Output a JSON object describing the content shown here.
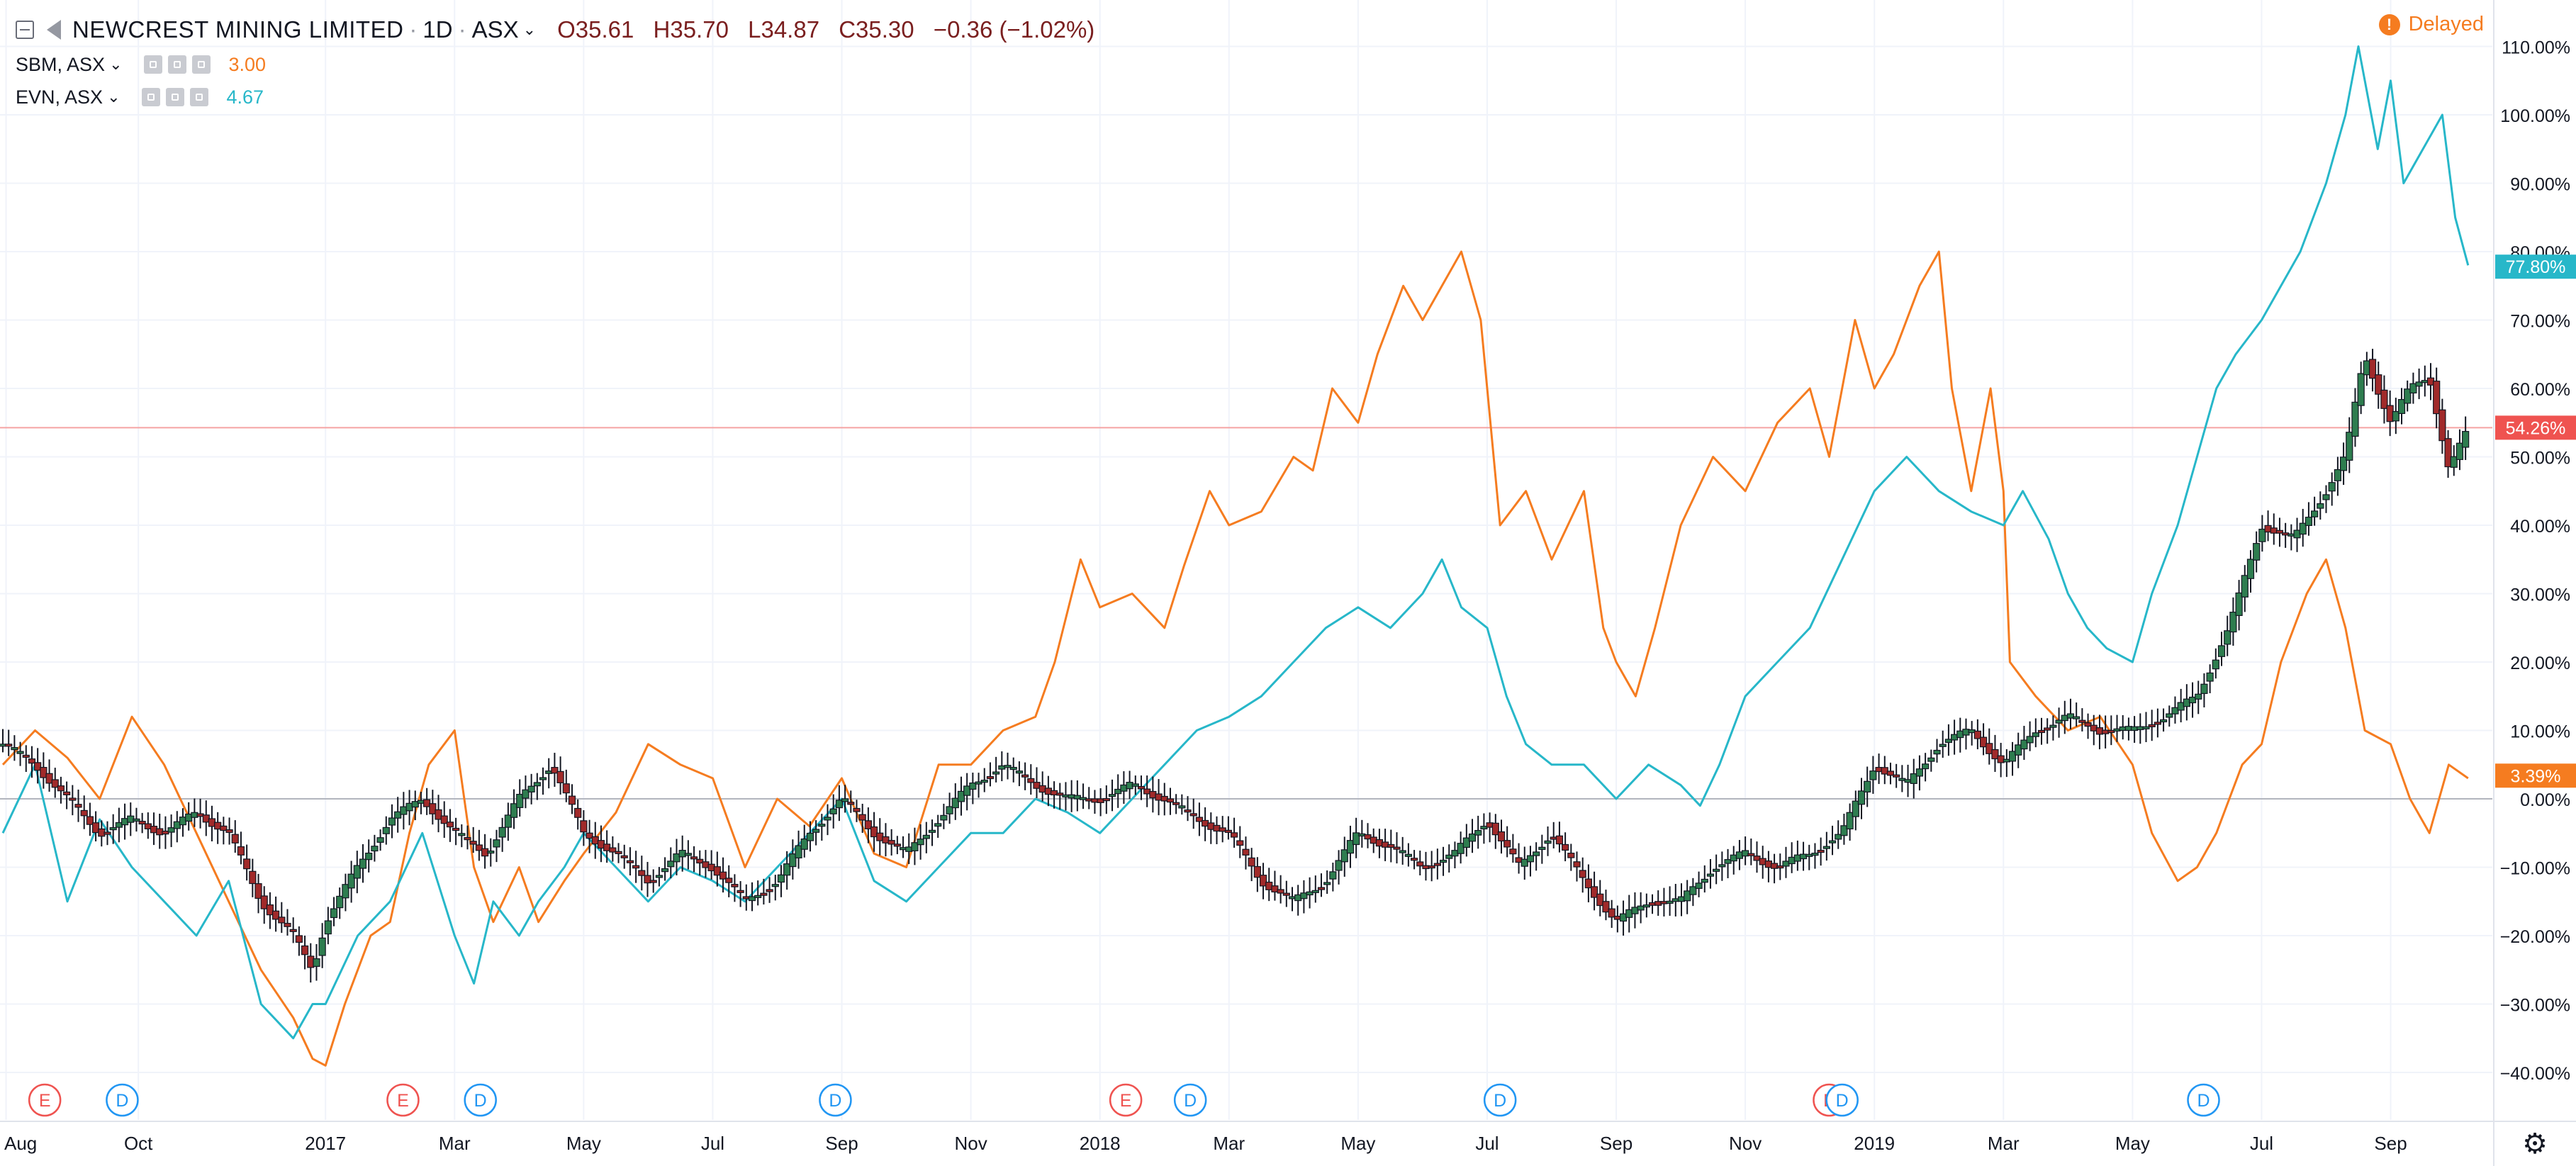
{
  "header": {
    "title": "NEWCREST MINING LIMITED",
    "interval": "1D",
    "exchange": "ASX",
    "ohlc": {
      "open": "O35.61",
      "high": "H35.70",
      "low": "L34.87",
      "close": "C35.30",
      "change": "−0.36 (−1.02%)"
    }
  },
  "compare": [
    {
      "symbol": "SBM, ASX",
      "value": "3.00",
      "color": "#f57c20"
    },
    {
      "symbol": "EVN, ASX",
      "value": "4.67",
      "color": "#27b7c9"
    }
  ],
  "status": {
    "delayed_label": "Delayed",
    "icon": "exclamation-icon"
  },
  "icons": {
    "settings": "gear-icon",
    "collapse": "minus-square-icon",
    "flag": "flag-icon"
  },
  "chart_data": {
    "type": "line",
    "main_series_type": "candlestick",
    "y_unit": "percent change",
    "ylim": [
      -45,
      113
    ],
    "y_ticks": [
      -40,
      -30,
      -20,
      -10,
      0,
      10,
      20,
      30,
      40,
      50,
      60,
      70,
      80,
      90,
      100,
      110
    ],
    "y_tick_labels": [
      "−40.00%",
      "−30.00%",
      "−20.00%",
      "−10.00%",
      "0.00%",
      "10.00%",
      "20.00%",
      "30.00%",
      "40.00%",
      "50.00%",
      "60.00%",
      "70.00%",
      "80.00%",
      "90.00%",
      "100.00%",
      "110.00%"
    ],
    "x_range": [
      "2016-08",
      "2019-09"
    ],
    "x_ticks": [
      {
        "label": "Aug",
        "t": 0.05
      },
      {
        "label": "Oct",
        "t": 2.1
      },
      {
        "label": "2017",
        "t": 5.0
      },
      {
        "label": "Mar",
        "t": 7.0
      },
      {
        "label": "May",
        "t": 9.0
      },
      {
        "label": "Jul",
        "t": 11.0
      },
      {
        "label": "Sep",
        "t": 13.0
      },
      {
        "label": "Nov",
        "t": 15.0
      },
      {
        "label": "2018",
        "t": 17.0
      },
      {
        "label": "Mar",
        "t": 19.0
      },
      {
        "label": "May",
        "t": 21.0
      },
      {
        "label": "Jul",
        "t": 23.0
      },
      {
        "label": "Sep",
        "t": 25.0
      },
      {
        "label": "Nov",
        "t": 27.0
      },
      {
        "label": "2019",
        "t": 29.0
      },
      {
        "label": "Mar",
        "t": 31.0
      },
      {
        "label": "May",
        "t": 33.0
      },
      {
        "label": "Jul",
        "t": 35.0
      },
      {
        "label": "Sep",
        "t": 37.0
      }
    ],
    "x_max": 38.4,
    "series": [
      {
        "name": "SBM, ASX",
        "color": "#f57c20",
        "points": [
          [
            0,
            5
          ],
          [
            0.5,
            10
          ],
          [
            1,
            6
          ],
          [
            1.5,
            0
          ],
          [
            2,
            12
          ],
          [
            2.5,
            5
          ],
          [
            3,
            -5
          ],
          [
            3.5,
            -15
          ],
          [
            4,
            -25
          ],
          [
            4.5,
            -32
          ],
          [
            4.8,
            -38
          ],
          [
            5,
            -39
          ],
          [
            5.3,
            -30
          ],
          [
            5.7,
            -20
          ],
          [
            6,
            -18
          ],
          [
            6.3,
            -5
          ],
          [
            6.6,
            5
          ],
          [
            7,
            10
          ],
          [
            7.3,
            -10
          ],
          [
            7.6,
            -18
          ],
          [
            8,
            -10
          ],
          [
            8.3,
            -18
          ],
          [
            8.7,
            -12
          ],
          [
            9,
            -8
          ],
          [
            9.5,
            -2
          ],
          [
            10,
            8
          ],
          [
            10.5,
            5
          ],
          [
            11,
            3
          ],
          [
            11.5,
            -10
          ],
          [
            12,
            0
          ],
          [
            12.5,
            -4
          ],
          [
            13,
            3
          ],
          [
            13.5,
            -8
          ],
          [
            14,
            -10
          ],
          [
            14.5,
            5
          ],
          [
            15,
            5
          ],
          [
            15.5,
            10
          ],
          [
            16,
            12
          ],
          [
            16.3,
            20
          ],
          [
            16.7,
            35
          ],
          [
            17,
            28
          ],
          [
            17.5,
            30
          ],
          [
            18,
            25
          ],
          [
            18.3,
            34
          ],
          [
            18.7,
            45
          ],
          [
            19,
            40
          ],
          [
            19.5,
            42
          ],
          [
            20,
            50
          ],
          [
            20.3,
            48
          ],
          [
            20.6,
            60
          ],
          [
            21,
            55
          ],
          [
            21.3,
            65
          ],
          [
            21.7,
            75
          ],
          [
            22,
            70
          ],
          [
            22.3,
            75
          ],
          [
            22.6,
            80
          ],
          [
            22.9,
            70
          ],
          [
            23.2,
            40
          ],
          [
            23.6,
            45
          ],
          [
            24,
            35
          ],
          [
            24.5,
            45
          ],
          [
            24.8,
            25
          ],
          [
            25,
            20
          ],
          [
            25.3,
            15
          ],
          [
            25.6,
            25
          ],
          [
            26,
            40
          ],
          [
            26.5,
            50
          ],
          [
            27,
            45
          ],
          [
            27.5,
            55
          ],
          [
            28,
            60
          ],
          [
            28.3,
            50
          ],
          [
            28.7,
            70
          ],
          [
            29,
            60
          ],
          [
            29.3,
            65
          ],
          [
            29.7,
            75
          ],
          [
            30,
            80
          ],
          [
            30.2,
            60
          ],
          [
            30.5,
            45
          ],
          [
            30.8,
            60
          ],
          [
            31,
            45
          ],
          [
            31.1,
            20
          ],
          [
            31.5,
            15
          ],
          [
            32,
            10
          ],
          [
            32.5,
            12
          ],
          [
            33,
            5
          ],
          [
            33.3,
            -5
          ],
          [
            33.7,
            -12
          ],
          [
            34,
            -10
          ],
          [
            34.3,
            -5
          ],
          [
            34.7,
            5
          ],
          [
            35,
            8
          ],
          [
            35.3,
            20
          ],
          [
            35.7,
            30
          ],
          [
            36,
            35
          ],
          [
            36.3,
            25
          ],
          [
            36.6,
            10
          ],
          [
            37,
            8
          ],
          [
            37.3,
            0
          ],
          [
            37.6,
            -5
          ],
          [
            37.9,
            5
          ],
          [
            38.2,
            3
          ]
        ]
      },
      {
        "name": "EVN, ASX",
        "color": "#27b7c9",
        "points": [
          [
            0,
            -5
          ],
          [
            0.5,
            5
          ],
          [
            1,
            -15
          ],
          [
            1.5,
            -3
          ],
          [
            2,
            -10
          ],
          [
            2.5,
            -15
          ],
          [
            3,
            -20
          ],
          [
            3.5,
            -12
          ],
          [
            4,
            -30
          ],
          [
            4.5,
            -35
          ],
          [
            4.8,
            -30
          ],
          [
            5,
            -30
          ],
          [
            5.5,
            -20
          ],
          [
            6,
            -15
          ],
          [
            6.5,
            -5
          ],
          [
            7,
            -20
          ],
          [
            7.3,
            -27
          ],
          [
            7.6,
            -15
          ],
          [
            8,
            -20
          ],
          [
            8.3,
            -15
          ],
          [
            8.7,
            -10
          ],
          [
            9,
            -5
          ],
          [
            9.5,
            -10
          ],
          [
            10,
            -15
          ],
          [
            10.5,
            -10
          ],
          [
            11,
            -12
          ],
          [
            11.5,
            -15
          ],
          [
            12,
            -10
          ],
          [
            12.5,
            -5
          ],
          [
            13,
            0
          ],
          [
            13.5,
            -12
          ],
          [
            14,
            -15
          ],
          [
            14.5,
            -10
          ],
          [
            15,
            -5
          ],
          [
            15.5,
            -5
          ],
          [
            16,
            0
          ],
          [
            16.5,
            -2
          ],
          [
            17,
            -5
          ],
          [
            17.5,
            0
          ],
          [
            18,
            5
          ],
          [
            18.5,
            10
          ],
          [
            19,
            12
          ],
          [
            19.5,
            15
          ],
          [
            20,
            20
          ],
          [
            20.5,
            25
          ],
          [
            21,
            28
          ],
          [
            21.5,
            25
          ],
          [
            22,
            30
          ],
          [
            22.3,
            35
          ],
          [
            22.6,
            28
          ],
          [
            23,
            25
          ],
          [
            23.3,
            15
          ],
          [
            23.6,
            8
          ],
          [
            24,
            5
          ],
          [
            24.5,
            5
          ],
          [
            25,
            0
          ],
          [
            25.5,
            5
          ],
          [
            26,
            2
          ],
          [
            26.3,
            -1
          ],
          [
            26.6,
            5
          ],
          [
            27,
            15
          ],
          [
            27.5,
            20
          ],
          [
            28,
            25
          ],
          [
            28.5,
            35
          ],
          [
            29,
            45
          ],
          [
            29.5,
            50
          ],
          [
            30,
            45
          ],
          [
            30.5,
            42
          ],
          [
            31,
            40
          ],
          [
            31.3,
            45
          ],
          [
            31.7,
            38
          ],
          [
            32,
            30
          ],
          [
            32.3,
            25
          ],
          [
            32.6,
            22
          ],
          [
            33,
            20
          ],
          [
            33.3,
            30
          ],
          [
            33.7,
            40
          ],
          [
            34,
            50
          ],
          [
            34.3,
            60
          ],
          [
            34.6,
            65
          ],
          [
            35,
            70
          ],
          [
            35.3,
            75
          ],
          [
            35.6,
            80
          ],
          [
            36,
            90
          ],
          [
            36.3,
            100
          ],
          [
            36.5,
            110
          ],
          [
            36.8,
            95
          ],
          [
            37,
            105
          ],
          [
            37.2,
            90
          ],
          [
            37.5,
            95
          ],
          [
            37.8,
            100
          ],
          [
            38,
            85
          ],
          [
            38.2,
            78
          ]
        ]
      },
      {
        "name": "NEWCREST MINING LIMITED",
        "color": "#2e6b3f",
        "points": [
          [
            0,
            8
          ],
          [
            0.5,
            5
          ],
          [
            1,
            0
          ],
          [
            1.5,
            -5
          ],
          [
            2,
            -3
          ],
          [
            2.5,
            -5
          ],
          [
            3,
            -2
          ],
          [
            3.5,
            -5
          ],
          [
            4,
            -15
          ],
          [
            4.5,
            -20
          ],
          [
            4.8,
            -25
          ],
          [
            5,
            -18
          ],
          [
            5.5,
            -10
          ],
          [
            6,
            -3
          ],
          [
            6.5,
            0
          ],
          [
            7,
            -5
          ],
          [
            7.5,
            -8
          ],
          [
            8,
            0
          ],
          [
            8.5,
            5
          ],
          [
            9,
            -5
          ],
          [
            9.5,
            -8
          ],
          [
            10,
            -12
          ],
          [
            10.5,
            -8
          ],
          [
            11,
            -10
          ],
          [
            11.5,
            -15
          ],
          [
            12,
            -12
          ],
          [
            12.5,
            -5
          ],
          [
            13,
            0
          ],
          [
            13.5,
            -5
          ],
          [
            14,
            -8
          ],
          [
            14.5,
            -3
          ],
          [
            15,
            2
          ],
          [
            15.5,
            5
          ],
          [
            16,
            2
          ],
          [
            16.5,
            0
          ],
          [
            17,
            0
          ],
          [
            17.5,
            2
          ],
          [
            18,
            0
          ],
          [
            18.5,
            -3
          ],
          [
            19,
            -5
          ],
          [
            19.5,
            -12
          ],
          [
            20,
            -15
          ],
          [
            20.5,
            -12
          ],
          [
            21,
            -5
          ],
          [
            21.5,
            -7
          ],
          [
            22,
            -10
          ],
          [
            22.5,
            -8
          ],
          [
            23,
            -3
          ],
          [
            23.5,
            -10
          ],
          [
            24,
            -5
          ],
          [
            24.5,
            -12
          ],
          [
            25,
            -18
          ],
          [
            25.5,
            -15
          ],
          [
            26,
            -15
          ],
          [
            26.5,
            -10
          ],
          [
            27,
            -8
          ],
          [
            27.5,
            -10
          ],
          [
            28,
            -8
          ],
          [
            28.5,
            -5
          ],
          [
            29,
            5
          ],
          [
            29.5,
            2
          ],
          [
            30,
            8
          ],
          [
            30.5,
            10
          ],
          [
            31,
            5
          ],
          [
            31.5,
            10
          ],
          [
            32,
            12
          ],
          [
            32.5,
            10
          ],
          [
            33,
            10
          ],
          [
            33.5,
            12
          ],
          [
            34,
            15
          ],
          [
            34.5,
            25
          ],
          [
            35,
            40
          ],
          [
            35.5,
            38
          ],
          [
            36,
            45
          ],
          [
            36.3,
            50
          ],
          [
            36.6,
            65
          ],
          [
            37,
            55
          ],
          [
            37.3,
            60
          ],
          [
            37.6,
            62
          ],
          [
            37.9,
            48
          ],
          [
            38.2,
            54
          ]
        ]
      }
    ],
    "price_labels": [
      {
        "value": 77.8,
        "label": "77.80%",
        "color": "#27b7c9"
      },
      {
        "value": 54.26,
        "label": "54.26%",
        "color": "#ef5350"
      },
      {
        "value": 3.39,
        "label": "3.39%",
        "color": "#f57c20"
      }
    ],
    "event_markers": [
      {
        "letter": "E",
        "t": 0.65,
        "color": "#ef5350"
      },
      {
        "letter": "D",
        "t": 1.85,
        "color": "#2196f3"
      },
      {
        "letter": "E",
        "t": 6.2,
        "color": "#ef5350"
      },
      {
        "letter": "D",
        "t": 7.4,
        "color": "#2196f3"
      },
      {
        "letter": "D",
        "t": 12.9,
        "color": "#2196f3"
      },
      {
        "letter": "E",
        "t": 17.4,
        "color": "#ef5350"
      },
      {
        "letter": "D",
        "t": 18.4,
        "color": "#2196f3"
      },
      {
        "letter": "D",
        "t": 23.2,
        "color": "#2196f3"
      },
      {
        "letter": "E",
        "t": 28.3,
        "color": "#ef5350"
      },
      {
        "letter": "D",
        "t": 28.5,
        "color": "#2196f3"
      },
      {
        "letter": "D",
        "t": 34.1,
        "color": "#2196f3"
      }
    ]
  }
}
